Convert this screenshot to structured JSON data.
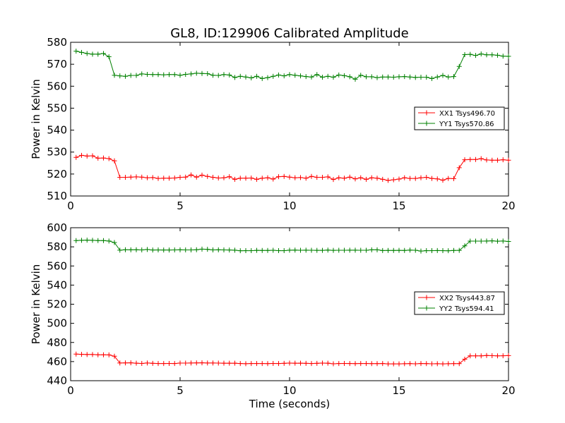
{
  "figure": {
    "title": "GL8, ID:129906 Calibrated Amplitude",
    "xlabel": "Time (seconds)"
  },
  "chart_data": [
    {
      "type": "line",
      "title": "GL8, ID:129906 Calibrated Amplitude",
      "xlabel": "",
      "ylabel": "Power in Kelvin",
      "xlim": [
        0,
        20
      ],
      "ylim": [
        510,
        580
      ],
      "xticks": [
        "0",
        "5",
        "10",
        "15",
        "20"
      ],
      "yticks": [
        "510",
        "520",
        "530",
        "540",
        "550",
        "560",
        "570",
        "580"
      ],
      "legend_placement": "right",
      "x": [
        0.25,
        0.5,
        0.75,
        1.0,
        1.25,
        1.5,
        1.75,
        2.0,
        2.25,
        2.5,
        2.75,
        3.0,
        3.25,
        3.5,
        3.75,
        4.0,
        4.25,
        4.5,
        4.75,
        5.0,
        5.25,
        5.5,
        5.75,
        6.0,
        6.25,
        6.5,
        6.75,
        7.0,
        7.25,
        7.5,
        7.75,
        8.0,
        8.25,
        8.5,
        8.75,
        9.0,
        9.25,
        9.5,
        9.75,
        10.0,
        10.25,
        10.5,
        10.75,
        11.0,
        11.25,
        11.5,
        11.75,
        12.0,
        12.25,
        12.5,
        12.75,
        13.0,
        13.25,
        13.5,
        13.75,
        14.0,
        14.25,
        14.5,
        14.75,
        15.0,
        15.25,
        15.5,
        15.75,
        16.0,
        16.25,
        16.5,
        16.75,
        17.0,
        17.25,
        17.5,
        17.75,
        18.0,
        18.25,
        18.5,
        18.75,
        19.0,
        19.25,
        19.5,
        19.75,
        20.0
      ],
      "series": [
        {
          "name": "XX1 Tsys496.70",
          "color": "#ff0000",
          "values": [
            527.6,
            528.5,
            528.2,
            528.3,
            527.2,
            527.3,
            527.0,
            526.0,
            518.5,
            518.5,
            518.6,
            518.7,
            518.6,
            518.3,
            518.4,
            518.0,
            518.1,
            518.1,
            518.2,
            518.5,
            518.6,
            519.6,
            518.6,
            519.5,
            518.9,
            518.5,
            518.2,
            518.3,
            518.8,
            517.6,
            518.1,
            518.1,
            518.2,
            517.6,
            518.1,
            518.3,
            517.7,
            518.8,
            518.9,
            518.6,
            518.3,
            518.4,
            518.1,
            518.9,
            518.5,
            518.5,
            518.7,
            517.5,
            518.3,
            518.1,
            518.6,
            517.8,
            518.3,
            517.6,
            518.3,
            518.1,
            517.6,
            517.1,
            517.4,
            517.7,
            518.3,
            518.0,
            518.0,
            518.3,
            518.5,
            518.0,
            517.8,
            517.2,
            518.0,
            517.9,
            522.9,
            526.5,
            526.6,
            526.6,
            527.0,
            526.4,
            526.3,
            526.3,
            526.5,
            526.3
          ]
        },
        {
          "name": "YY1 Tsys570.86",
          "color": "#008000",
          "values": [
            576.0,
            575.4,
            574.9,
            574.6,
            574.6,
            574.9,
            573.4,
            565.0,
            564.7,
            564.5,
            564.9,
            564.9,
            565.6,
            565.4,
            565.3,
            565.3,
            565.2,
            565.3,
            565.3,
            565.0,
            565.4,
            565.6,
            565.9,
            565.8,
            565.7,
            565.0,
            564.9,
            565.3,
            565.1,
            564.0,
            564.5,
            564.2,
            563.8,
            564.5,
            563.5,
            563.9,
            564.5,
            565.1,
            564.7,
            565.3,
            565.0,
            564.7,
            564.4,
            564.2,
            565.3,
            564.1,
            564.5,
            564.1,
            565.1,
            564.8,
            564.3,
            563.2,
            565.0,
            564.3,
            564.3,
            563.9,
            564.2,
            564.2,
            564.1,
            564.3,
            564.4,
            564.2,
            564.0,
            564.1,
            564.1,
            563.5,
            564.2,
            564.9,
            564.2,
            564.4,
            569.0,
            574.4,
            574.5,
            574.0,
            574.7,
            574.3,
            574.3,
            574.1,
            573.7,
            573.6
          ]
        }
      ]
    },
    {
      "type": "line",
      "title": "",
      "xlabel": "Time (seconds)",
      "ylabel": "Power in Kelvin",
      "xlim": [
        0,
        20
      ],
      "ylim": [
        440,
        600
      ],
      "xticks": [
        "0",
        "5",
        "10",
        "15",
        "20"
      ],
      "yticks": [
        "440",
        "460",
        "480",
        "500",
        "520",
        "540",
        "560",
        "580",
        "600"
      ],
      "legend_placement": "right",
      "x": [
        0.25,
        0.5,
        0.75,
        1.0,
        1.25,
        1.5,
        1.75,
        2.0,
        2.25,
        2.5,
        2.75,
        3.0,
        3.25,
        3.5,
        3.75,
        4.0,
        4.25,
        4.5,
        4.75,
        5.0,
        5.25,
        5.5,
        5.75,
        6.0,
        6.25,
        6.5,
        6.75,
        7.0,
        7.25,
        7.5,
        7.75,
        8.0,
        8.25,
        8.5,
        8.75,
        9.0,
        9.25,
        9.5,
        9.75,
        10.0,
        10.25,
        10.5,
        10.75,
        11.0,
        11.25,
        11.5,
        11.75,
        12.0,
        12.25,
        12.5,
        12.75,
        13.0,
        13.25,
        13.5,
        13.75,
        14.0,
        14.25,
        14.5,
        14.75,
        15.0,
        15.25,
        15.5,
        15.75,
        16.0,
        16.25,
        16.5,
        16.75,
        17.0,
        17.25,
        17.5,
        17.75,
        18.0,
        18.25,
        18.5,
        18.75,
        19.0,
        19.25,
        19.5,
        19.75,
        20.0
      ],
      "series": [
        {
          "name": "XX2 Tsys443.87",
          "color": "#ff0000",
          "values": [
            467.8,
            467.6,
            467.4,
            467.4,
            467.1,
            467.1,
            467.0,
            465.6,
            458.5,
            458.6,
            458.7,
            458.3,
            458.1,
            458.5,
            458.2,
            458.0,
            458.0,
            458.1,
            458.0,
            458.4,
            458.4,
            458.5,
            458.6,
            458.7,
            458.5,
            458.5,
            458.4,
            458.3,
            458.3,
            458.3,
            458.0,
            457.8,
            458.0,
            458.0,
            458.0,
            457.9,
            458.1,
            458.0,
            458.2,
            458.4,
            458.3,
            458.3,
            458.2,
            458.0,
            458.2,
            458.4,
            458.3,
            457.7,
            458.0,
            458.1,
            458.0,
            457.9,
            458.0,
            458.0,
            457.9,
            457.9,
            458.0,
            457.6,
            457.6,
            457.6,
            457.8,
            457.9,
            457.7,
            458.0,
            457.9,
            457.7,
            457.8,
            457.6,
            457.8,
            457.9,
            457.9,
            462.5,
            466.0,
            466.0,
            466.0,
            466.4,
            466.2,
            466.0,
            466.1,
            466.3
          ]
        },
        {
          "name": "YY2 Tsys594.41",
          "color": "#008000",
          "values": [
            586.5,
            586.8,
            587.0,
            586.8,
            586.5,
            586.5,
            586.1,
            584.5,
            576.5,
            577.0,
            576.9,
            577.0,
            576.8,
            577.2,
            576.7,
            576.8,
            576.7,
            576.7,
            576.8,
            576.9,
            576.8,
            576.8,
            577.0,
            577.6,
            577.4,
            576.8,
            576.9,
            576.8,
            576.7,
            576.5,
            575.9,
            576.0,
            576.0,
            576.3,
            576.2,
            576.2,
            576.4,
            576.0,
            576.0,
            576.5,
            576.6,
            576.4,
            576.5,
            576.4,
            576.3,
            576.3,
            576.6,
            576.3,
            576.4,
            576.4,
            576.5,
            576.5,
            576.4,
            576.4,
            576.9,
            576.9,
            576.1,
            576.2,
            576.2,
            576.3,
            576.2,
            576.6,
            576.4,
            575.6,
            576.0,
            576.0,
            576.1,
            576.0,
            575.9,
            576.2,
            576.3,
            581.0,
            586.0,
            586.0,
            586.0,
            586.1,
            586.3,
            585.9,
            586.1,
            585.6
          ]
        }
      ]
    }
  ]
}
